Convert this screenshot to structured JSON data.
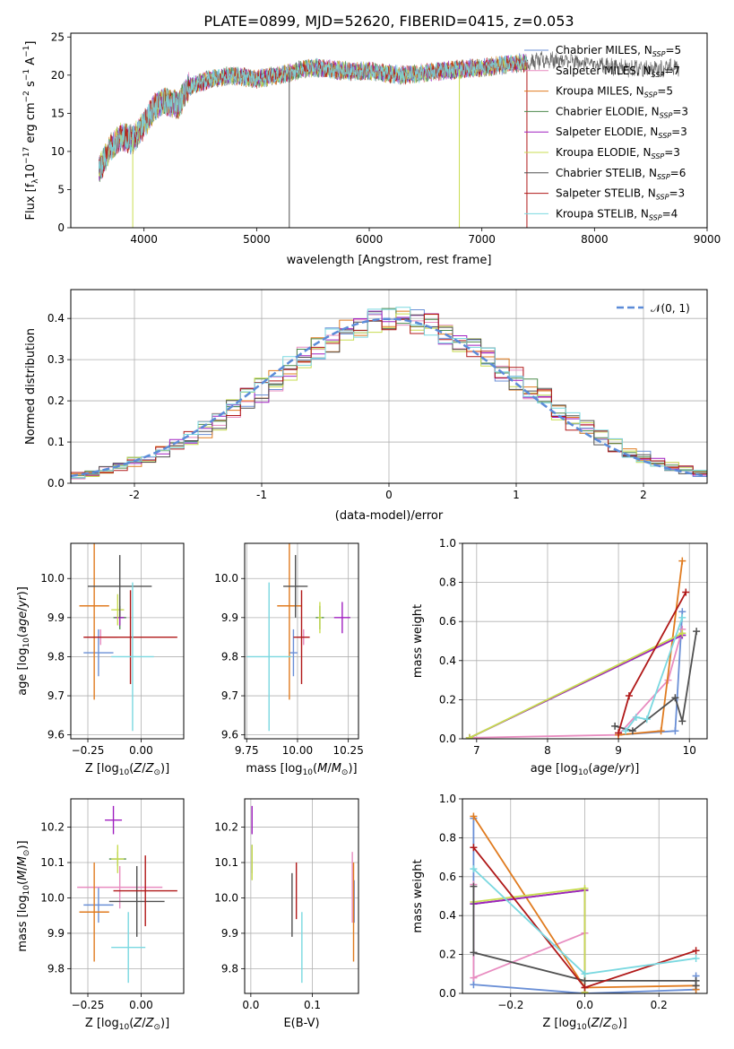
{
  "figure_title": "PLATE=0899, MJD=52620, FIBERID=0415, z=0.053",
  "series_colors": {
    "Chabrier MILES": "#6a8fd6",
    "Salpeter MILES": "#e88cc0",
    "Kroupa MILES": "#e07b1f",
    "Chabrier ELODIE": "#4c8a4c",
    "Salpeter ELODIE": "#a020c0",
    "Kroupa ELODIE": "#c8dc50",
    "Chabrier STELIB": "#505050",
    "Salpeter STELIB": "#b01818",
    "Kroupa STELIB": "#7ad8e0"
  },
  "chart_data": [
    {
      "id": "spectrum",
      "type": "line",
      "title": "PLATE=0899, MJD=52620, FIBERID=0415, z=0.053",
      "xlabel": "wavelength [Angstrom, rest frame]",
      "ylabel": "Flux [f_λ 10^-17 erg cm^-2 s^-1 A^-1]",
      "xlim": [
        3350,
        9000
      ],
      "ylim": [
        0,
        25.5
      ],
      "xticks": [
        4000,
        5000,
        6000,
        7000,
        8000,
        9000
      ],
      "yticks": [
        0,
        5,
        10,
        15,
        20,
        25
      ],
      "legend_position": "right",
      "legend": [
        {
          "name": "Chabrier MILES",
          "nssp": "5"
        },
        {
          "name": "Salpeter MILES",
          "nssp": "7"
        },
        {
          "name": "Kroupa MILES",
          "nssp": "5"
        },
        {
          "name": "Chabrier ELODIE",
          "nssp": "3"
        },
        {
          "name": "Salpeter ELODIE",
          "nssp": "3"
        },
        {
          "name": "Kroupa ELODIE",
          "nssp": "3"
        },
        {
          "name": "Chabrier STELIB",
          "nssp": "6"
        },
        {
          "name": "Salpeter STELIB",
          "nssp": "3"
        },
        {
          "name": "Kroupa STELIB",
          "nssp": "4"
        }
      ],
      "continuum": {
        "x": [
          3600,
          3700,
          3800,
          3900,
          4000,
          4100,
          4200,
          4300,
          4400,
          4600,
          4800,
          5000,
          5200,
          5500,
          5800,
          6000,
          6300,
          6600,
          7000,
          7300,
          7600,
          8000,
          8400,
          8750
        ],
        "y": [
          7.5,
          10.5,
          12,
          11.5,
          13.5,
          16,
          16.5,
          16,
          18.5,
          19.5,
          20,
          19.5,
          20,
          21,
          20.5,
          20.5,
          20,
          20.5,
          21,
          21.5,
          22,
          21.5,
          20.8,
          21.0
        ]
      },
      "dropouts": [
        {
          "series": "Chabrier STELIB",
          "x": 5290,
          "ymin": 0
        },
        {
          "series": "Kroupa ELODIE",
          "x": 3900,
          "ymin": 0
        },
        {
          "series": "Kroupa ELODIE",
          "x": 6800,
          "ymin": 0
        },
        {
          "series": "Salpeter STELIB",
          "x": 7400,
          "ymin": 0
        }
      ]
    },
    {
      "id": "residuals",
      "type": "line",
      "xlabel": "(data-model)/error",
      "ylabel": "Normed distribution",
      "xlim": [
        -2.5,
        2.5
      ],
      "ylim": [
        0,
        0.47
      ],
      "xticks": [
        -2,
        -1,
        0,
        1,
        2
      ],
      "yticks": [
        0.0,
        0.1,
        0.2,
        0.3,
        0.4
      ],
      "legend": [
        "𝒩(0, 1)"
      ],
      "legend_position": "top-right",
      "hist_bins": 45,
      "hist_means": [
        0.019,
        0.024,
        0.032,
        0.042,
        0.052,
        0.064,
        0.078,
        0.093,
        0.111,
        0.131,
        0.153,
        0.176,
        0.201,
        0.226,
        0.252,
        0.278,
        0.303,
        0.326,
        0.348,
        0.366,
        0.382,
        0.393,
        0.399,
        0.399,
        0.393,
        0.382,
        0.366,
        0.348,
        0.326,
        0.303,
        0.278,
        0.252,
        0.226,
        0.201,
        0.176,
        0.153,
        0.131,
        0.111,
        0.093,
        0.078,
        0.064,
        0.052,
        0.042,
        0.032,
        0.024
      ]
    },
    {
      "id": "age-vs-Z",
      "type": "scatter",
      "xlabel": "Z [log10(Z/Z⊙)]",
      "ylabel": "age  [log10(age/yr)]",
      "xlim": [
        -0.33,
        0.2
      ],
      "ylim": [
        9.59,
        10.09
      ],
      "xticks": [
        -0.25,
        0.0
      ],
      "xticklabels": [
        "−0.25",
        "0.00"
      ],
      "yticks": [
        9.6,
        9.7,
        9.8,
        9.9,
        10.0
      ],
      "points": [
        {
          "series": "Chabrier MILES",
          "x": -0.2,
          "xerr": 0.07,
          "y": 9.81,
          "yerr": 0.06
        },
        {
          "series": "Salpeter MILES",
          "x": -0.19,
          "xerr": 0.08,
          "y": 9.85,
          "yerr": 0.02
        },
        {
          "series": "Kroupa MILES",
          "x": -0.22,
          "xerr": 0.07,
          "y": 9.93,
          "yerr": 0.24
        },
        {
          "series": "Chabrier ELODIE",
          "x": -0.1,
          "xerr": 0.03,
          "y": 9.9,
          "yerr": 0.03
        },
        {
          "series": "Salpeter ELODIE",
          "x": -0.1,
          "xerr": 0.02,
          "y": 9.9,
          "yerr": 0.02
        },
        {
          "series": "Kroupa ELODIE",
          "x": -0.11,
          "xerr": 0.03,
          "y": 9.92,
          "yerr": 0.04
        },
        {
          "series": "Chabrier STELIB",
          "x": -0.1,
          "xerr": 0.15,
          "y": 9.98,
          "yerr": 0.08
        },
        {
          "series": "Salpeter STELIB",
          "x": -0.05,
          "xerr": 0.22,
          "y": 9.85,
          "yerr": 0.12
        },
        {
          "series": "Kroupa STELIB",
          "x": -0.04,
          "xerr": 0.1,
          "y": 9.8,
          "yerr": 0.19
        }
      ]
    },
    {
      "id": "age-vs-mass",
      "type": "scatter",
      "xlabel": "mass [log10(M/M⊙)]",
      "xlim": [
        9.74,
        10.3
      ],
      "ylim": [
        9.59,
        10.09
      ],
      "xticks": [
        9.75,
        10.0,
        10.25
      ],
      "xticklabels": [
        "9.75",
        "10.00",
        "10.25"
      ],
      "yticks": [
        9.6,
        9.7,
        9.8,
        9.9,
        10.0
      ],
      "points": [
        {
          "series": "Chabrier MILES",
          "x": 9.98,
          "xerr": 0.02,
          "y": 9.81,
          "yerr": 0.06
        },
        {
          "series": "Salpeter MILES",
          "x": 10.03,
          "xerr": 0.03,
          "y": 9.85,
          "yerr": 0.02
        },
        {
          "series": "Kroupa MILES",
          "x": 9.96,
          "xerr": 0.06,
          "y": 9.93,
          "yerr": 0.24
        },
        {
          "series": "Chabrier ELODIE",
          "x": 10.11,
          "xerr": 0.02,
          "y": 9.9,
          "yerr": 0.03
        },
        {
          "series": "Salpeter ELODIE",
          "x": 10.22,
          "xerr": 0.04,
          "y": 9.9,
          "yerr": 0.04
        },
        {
          "series": "Kroupa ELODIE",
          "x": 10.11,
          "xerr": 0.01,
          "y": 9.9,
          "yerr": 0.04
        },
        {
          "series": "Chabrier STELIB",
          "x": 9.99,
          "xerr": 0.06,
          "y": 9.98,
          "yerr": 0.08
        },
        {
          "series": "Salpeter STELIB",
          "x": 10.02,
          "xerr": 0.04,
          "y": 9.85,
          "yerr": 0.12
        },
        {
          "series": "Kroupa STELIB",
          "x": 9.86,
          "xerr": 0.11,
          "y": 9.8,
          "yerr": 0.19
        }
      ]
    },
    {
      "id": "massweight-vs-age",
      "type": "line",
      "xlabel": "age  [log10(age/yr)]",
      "ylabel": "mass weight",
      "xlim": [
        6.8,
        10.25
      ],
      "ylim": [
        0,
        1.0
      ],
      "xticks": [
        7,
        8,
        9,
        10
      ],
      "yticks": [
        0.0,
        0.2,
        0.4,
        0.6,
        0.8,
        1.0
      ],
      "series": [
        {
          "name": "Chabrier MILES",
          "x": [
            9.0,
            9.8,
            9.9
          ],
          "y": [
            0.02,
            0.04,
            0.65
          ]
        },
        {
          "name": "Salpeter MILES",
          "x": [
            6.9,
            9.0,
            9.7,
            9.9
          ],
          "y": [
            0.005,
            0.02,
            0.3,
            0.56
          ]
        },
        {
          "name": "Kroupa MILES",
          "x": [
            9.0,
            9.6,
            9.9
          ],
          "y": [
            0.02,
            0.04,
            0.91
          ]
        },
        {
          "name": "Chabrier ELODIE",
          "x": [
            6.9,
            9.9
          ],
          "y": [
            0.005,
            0.53
          ]
        },
        {
          "name": "Salpeter ELODIE",
          "x": [
            6.9,
            9.9
          ],
          "y": [
            0.005,
            0.53
          ]
        },
        {
          "name": "Kroupa ELODIE",
          "x": [
            6.9,
            9.9
          ],
          "y": [
            0.005,
            0.54
          ]
        },
        {
          "name": "Chabrier STELIB",
          "x": [
            8.95,
            9.2,
            9.8,
            9.9,
            10.1
          ],
          "y": [
            0.065,
            0.04,
            0.21,
            0.09,
            0.55
          ]
        },
        {
          "name": "Salpeter STELIB",
          "x": [
            9.0,
            9.15,
            9.95
          ],
          "y": [
            0.03,
            0.22,
            0.75
          ]
        },
        {
          "name": "Kroupa STELIB",
          "x": [
            9.1,
            9.25,
            9.4,
            9.9
          ],
          "y": [
            0.04,
            0.11,
            0.1,
            0.62
          ]
        }
      ]
    },
    {
      "id": "mass-vs-Z",
      "type": "scatter",
      "xlabel": "Z [log10(Z/Z⊙)]",
      "ylabel": "mass [log10(M/M⊙)]",
      "xlim": [
        -0.33,
        0.2
      ],
      "ylim": [
        9.73,
        10.28
      ],
      "xticks": [
        -0.25,
        0.0
      ],
      "xticklabels": [
        "−0.25",
        "0.00"
      ],
      "yticks": [
        9.8,
        9.9,
        10.0,
        10.1,
        10.2
      ],
      "points": [
        {
          "series": "Chabrier MILES",
          "x": -0.2,
          "xerr": 0.07,
          "y": 9.98,
          "yerr": 0.05
        },
        {
          "series": "Salpeter MILES",
          "x": -0.1,
          "xerr": 0.2,
          "y": 10.03,
          "yerr": 0.06
        },
        {
          "series": "Kroupa MILES",
          "x": -0.22,
          "xerr": 0.07,
          "y": 9.96,
          "yerr": 0.14
        },
        {
          "series": "Chabrier ELODIE",
          "x": -0.11,
          "xerr": 0.04,
          "y": 10.11,
          "yerr": 0.02
        },
        {
          "series": "Salpeter ELODIE",
          "x": -0.13,
          "xerr": 0.04,
          "y": 10.22,
          "yerr": 0.04
        },
        {
          "series": "Kroupa ELODIE",
          "x": -0.11,
          "xerr": 0.03,
          "y": 10.11,
          "yerr": 0.04
        },
        {
          "series": "Chabrier STELIB",
          "x": -0.02,
          "xerr": 0.13,
          "y": 9.99,
          "yerr": 0.1
        },
        {
          "series": "Salpeter STELIB",
          "x": 0.02,
          "xerr": 0.15,
          "y": 10.02,
          "yerr": 0.1
        },
        {
          "series": "Kroupa STELIB",
          "x": -0.06,
          "xerr": 0.08,
          "y": 9.86,
          "yerr": 0.1
        }
      ]
    },
    {
      "id": "mass-vs-ebv",
      "type": "scatter",
      "xlabel": "E(B-V)",
      "xlim": [
        -0.01,
        0.175
      ],
      "ylim": [
        9.73,
        10.28
      ],
      "xticks": [
        0.0,
        0.1
      ],
      "xticklabels": [
        "0.0",
        "0.1"
      ],
      "yticks": [
        9.8,
        9.9,
        10.0,
        10.1,
        10.2
      ],
      "points": [
        {
          "series": "Chabrier MILES",
          "x": 0.168,
          "xerr": 0,
          "y": 9.99,
          "yerr": 0.06
        },
        {
          "series": "Salpeter MILES",
          "x": 0.165,
          "xerr": 0,
          "y": 10.03,
          "yerr": 0.1
        },
        {
          "series": "Kroupa MILES",
          "x": 0.167,
          "xerr": 0,
          "y": 9.96,
          "yerr": 0.14
        },
        {
          "series": "Chabrier ELODIE",
          "x": 0.002,
          "xerr": 0,
          "y": 10.11,
          "yerr": 0.04
        },
        {
          "series": "Salpeter ELODIE",
          "x": 0.002,
          "xerr": 0,
          "y": 10.22,
          "yerr": 0.04
        },
        {
          "series": "Kroupa ELODIE",
          "x": 0.002,
          "xerr": 0,
          "y": 10.1,
          "yerr": 0.05
        },
        {
          "series": "Chabrier STELIB",
          "x": 0.067,
          "xerr": 0,
          "y": 9.98,
          "yerr": 0.09
        },
        {
          "series": "Salpeter STELIB",
          "x": 0.074,
          "xerr": 0,
          "y": 10.02,
          "yerr": 0.08
        },
        {
          "series": "Kroupa STELIB",
          "x": 0.083,
          "xerr": 0,
          "y": 9.86,
          "yerr": 0.1
        }
      ]
    },
    {
      "id": "massweight-vs-Z",
      "type": "line",
      "xlabel": "Z [log10(Z/Z⊙)]",
      "ylabel": "mass weight",
      "xlim": [
        -0.33,
        0.33
      ],
      "ylim": [
        0,
        1.0
      ],
      "xticks": [
        -0.2,
        0.0,
        0.2
      ],
      "xticklabels": [
        "−0.2",
        "0.0",
        "0.2"
      ],
      "yticks": [
        0.0,
        0.2,
        0.4,
        0.6,
        0.8,
        1.0
      ],
      "series": [
        {
          "name": "Chabrier MILES",
          "x": [
            -0.3,
            -0.3,
            0.0,
            0.3,
            0.3
          ],
          "y": [
            0.9,
            0.045,
            0.0,
            0.02,
            0.09
          ]
        },
        {
          "name": "Salpeter MILES",
          "x": [
            -0.3,
            -0.3,
            0.0
          ],
          "y": [
            0.56,
            0.08,
            0.31
          ]
        },
        {
          "name": "Kroupa MILES",
          "x": [
            -0.3,
            0.0,
            0.3,
            0.3
          ],
          "y": [
            0.91,
            0.03,
            0.04,
            0.02
          ]
        },
        {
          "name": "Chabrier ELODIE",
          "x": [
            -0.3,
            0.0,
            0.0
          ],
          "y": [
            0.46,
            0.53,
            0.005
          ]
        },
        {
          "name": "Salpeter ELODIE",
          "x": [
            -0.3,
            0.0,
            0.0
          ],
          "y": [
            0.46,
            0.53,
            0.005
          ]
        },
        {
          "name": "Kroupa ELODIE",
          "x": [
            -0.3,
            0.0,
            0.0
          ],
          "y": [
            0.47,
            0.54,
            0.005
          ]
        },
        {
          "name": "Chabrier STELIB",
          "x": [
            -0.3,
            -0.3,
            0.0,
            0.3,
            0.3
          ],
          "y": [
            0.55,
            0.21,
            0.065,
            0.065,
            0.04
          ]
        },
        {
          "name": "Salpeter STELIB",
          "x": [
            -0.3,
            0.0,
            0.3
          ],
          "y": [
            0.75,
            0.03,
            0.22
          ]
        },
        {
          "name": "Kroupa STELIB",
          "x": [
            -0.3,
            0.0,
            0.3
          ],
          "y": [
            0.64,
            0.1,
            0.18
          ]
        }
      ]
    }
  ]
}
